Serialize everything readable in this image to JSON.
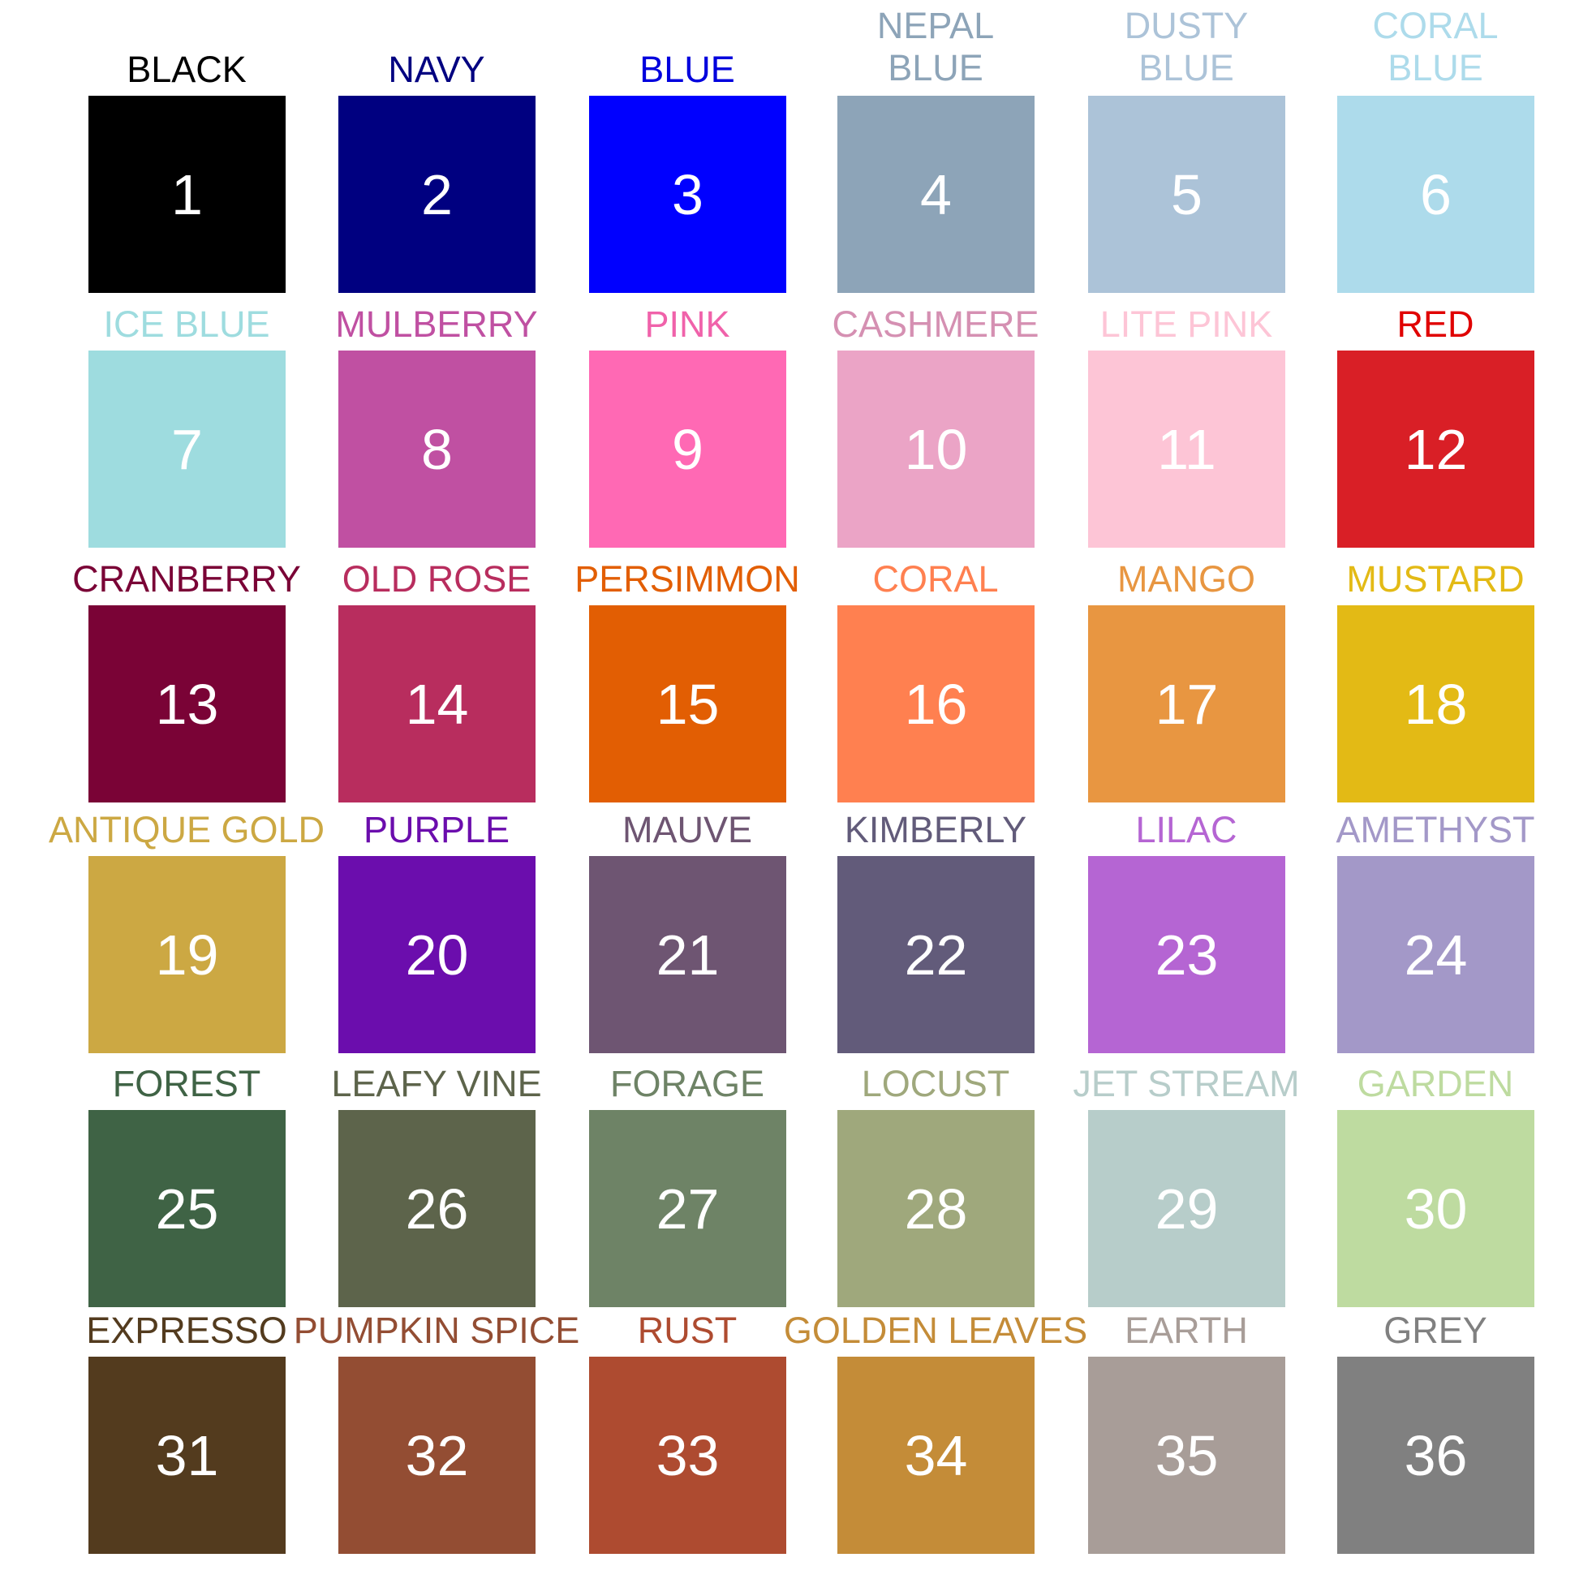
{
  "swatches": [
    {
      "number": "1",
      "name": "BLACK",
      "color": "#000000",
      "label_color": "#000000"
    },
    {
      "number": "2",
      "name": "NAVY",
      "color": "#000080",
      "label_color": "#000080"
    },
    {
      "number": "3",
      "name": "BLUE",
      "color": "#0000FF",
      "label_color": "#0000DD"
    },
    {
      "number": "4",
      "name": "NEPAL\nBLUE",
      "color": "#8DA4B8",
      "label_color": "#8DA4B8"
    },
    {
      "number": "5",
      "name": "DUSTY\nBLUE",
      "color": "#ACC3D8",
      "label_color": "#ACC3D8"
    },
    {
      "number": "6",
      "name": "CORAL\nBLUE",
      "color": "#ADDBEB",
      "label_color": "#ADDBEB"
    },
    {
      "number": "7",
      "name": "ICE BLUE",
      "color": "#9EDCDF",
      "label_color": "#9EDCDF"
    },
    {
      "number": "8",
      "name": "MULBERRY",
      "color": "#C050A2",
      "label_color": "#C050A2"
    },
    {
      "number": "9",
      "name": "PINK",
      "color": "#FF69B4",
      "label_color": "#F062AA"
    },
    {
      "number": "10",
      "name": "CASHMERE",
      "color": "#EBA4C6",
      "label_color": "#D590B2"
    },
    {
      "number": "11",
      "name": "LITE PINK",
      "color": "#FDC5D6",
      "label_color": "#FDC5D6"
    },
    {
      "number": "12",
      "name": "RED",
      "color": "#D91F26",
      "label_color": "#E00000"
    },
    {
      "number": "13",
      "name": "CRANBERRY",
      "color": "#7A0336",
      "label_color": "#7A0336"
    },
    {
      "number": "14",
      "name": "OLD ROSE",
      "color": "#B82D5E",
      "label_color": "#B82D5E"
    },
    {
      "number": "15",
      "name": "PERSIMMON",
      "color": "#E25E03",
      "label_color": "#E25E03"
    },
    {
      "number": "16",
      "name": "CORAL",
      "color": "#FF8050",
      "label_color": "#FF8050"
    },
    {
      "number": "17",
      "name": "MANGO",
      "color": "#E89641",
      "label_color": "#E89641"
    },
    {
      "number": "18",
      "name": "MUSTARD",
      "color": "#E3BA15",
      "label_color": "#E3BA15"
    },
    {
      "number": "19",
      "name": "ANTIQUE GOLD",
      "color": "#CCA843",
      "label_color": "#CCA843"
    },
    {
      "number": "20",
      "name": "PURPLE",
      "color": "#6B0DAD",
      "label_color": "#6B0DAD"
    },
    {
      "number": "21",
      "name": "MAUVE",
      "color": "#6E5572",
      "label_color": "#6E5572"
    },
    {
      "number": "22",
      "name": "KIMBERLY",
      "color": "#625B7A",
      "label_color": "#625B7A"
    },
    {
      "number": "23",
      "name": "LILAC",
      "color": "#B565D3",
      "label_color": "#B565D3"
    },
    {
      "number": "24",
      "name": "AMETHYST",
      "color": "#A398C8",
      "label_color": "#A398C8"
    },
    {
      "number": "25",
      "name": "FOREST",
      "color": "#3F6345",
      "label_color": "#3F6345"
    },
    {
      "number": "26",
      "name": "LEAFY VINE",
      "color": "#5D644B",
      "label_color": "#5D644B"
    },
    {
      "number": "27",
      "name": "FORAGE",
      "color": "#6E8366",
      "label_color": "#6E8366"
    },
    {
      "number": "28",
      "name": "LOCUST",
      "color": "#9FA87C",
      "label_color": "#9FA87C"
    },
    {
      "number": "29",
      "name": "JET STREAM",
      "color": "#B7CDCA",
      "label_color": "#B7CDCA"
    },
    {
      "number": "30",
      "name": "GARDEN",
      "color": "#BEDBA0",
      "label_color": "#BEDBA0"
    },
    {
      "number": "31",
      "name": "EXPRESSO",
      "color": "#533B1E",
      "label_color": "#533B1E"
    },
    {
      "number": "32",
      "name": "PUMPKIN SPICE",
      "color": "#934D33",
      "label_color": "#934D33"
    },
    {
      "number": "33",
      "name": "RUST",
      "color": "#AE4B30",
      "label_color": "#AE4B30"
    },
    {
      "number": "34",
      "name": "GOLDEN LEAVES",
      "color": "#C48C38",
      "label_color": "#C48C38"
    },
    {
      "number": "35",
      "name": "EARTH",
      "color": "#A89D98",
      "label_color": "#A89D98"
    },
    {
      "number": "36",
      "name": "GREY",
      "color": "#808080",
      "label_color": "#808080"
    }
  ]
}
